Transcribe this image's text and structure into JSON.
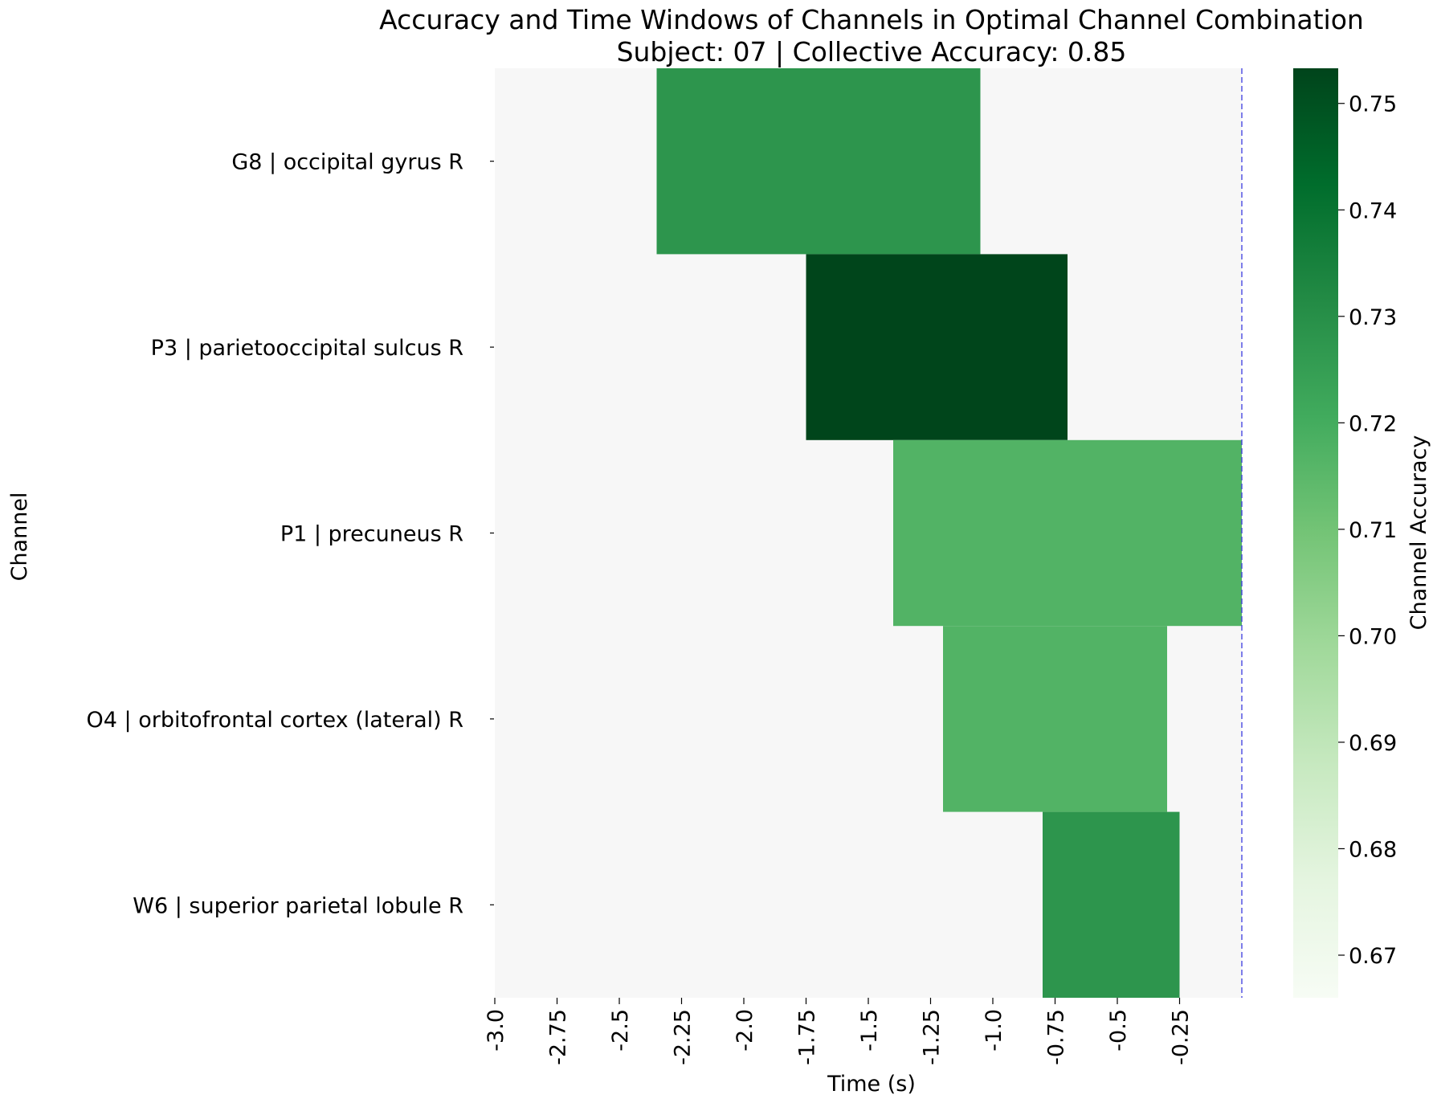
{
  "chart_data": {
    "type": "heatmap",
    "title": "Accuracy and Time Windows of Channels in Optimal Channel Combination",
    "subtitle": "Subject: 07 | Collective Accuracy: 0.85",
    "xlabel": "Time (s)",
    "ylabel": "Channel",
    "xlim": [
      -3.0,
      0.0
    ],
    "x_ticks": [
      -3.0,
      -2.75,
      -2.5,
      -2.25,
      -2.0,
      -1.75,
      -1.5,
      -1.25,
      -1.0,
      -0.75,
      -0.5,
      -0.25
    ],
    "x_tick_labels": [
      "-3.0",
      "-2.75",
      "-2.5",
      "-2.25",
      "-2.0",
      "-1.75",
      "-1.5",
      "-1.25",
      "-1.0",
      "-0.75",
      "-0.5",
      "-0.25"
    ],
    "channels": [
      {
        "label": "G8 | occipital gyrus R",
        "start": -2.35,
        "end": -1.05,
        "accuracy": 0.728
      },
      {
        "label": "P3 | parietooccipital sulcus R",
        "start": -1.75,
        "end": -0.7,
        "accuracy": 0.753
      },
      {
        "label": "P1 | precuneus R",
        "start": -1.4,
        "end": 0.0,
        "accuracy": 0.717
      },
      {
        "label": "O4 | orbitofrontal cortex (lateral) R",
        "start": -1.2,
        "end": -0.3,
        "accuracy": 0.717
      },
      {
        "label": "W6 | superior parietal lobule R",
        "start": -0.8,
        "end": -0.25,
        "accuracy": 0.728
      }
    ],
    "background_color": "#f7f7f7",
    "reference_line": {
      "x": 0.0,
      "color": "#3a3ae0",
      "style": "dashed"
    },
    "colorbar": {
      "label": "Channel Accuracy",
      "range": [
        0.666,
        0.7533
      ],
      "ticks": [
        0.67,
        0.68,
        0.69,
        0.7,
        0.71,
        0.72,
        0.73,
        0.74,
        0.75
      ],
      "tick_labels": [
        "0.67",
        "0.68",
        "0.69",
        "0.70",
        "0.71",
        "0.72",
        "0.73",
        "0.74",
        "0.75"
      ],
      "colormap": "Greens"
    }
  }
}
